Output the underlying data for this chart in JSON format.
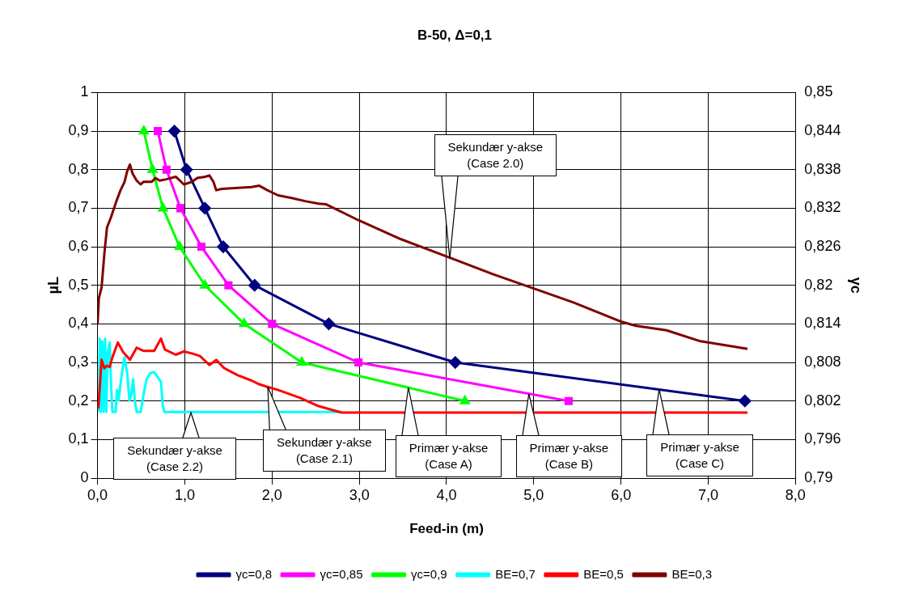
{
  "chart_data": {
    "type": "line",
    "title": "B-50, Δ=0,1",
    "xlabel": "Feed-in (m)",
    "ylabel": "µL",
    "y2label": "γc",
    "xlim": [
      0,
      8
    ],
    "xticks": [
      {
        "value": 0,
        "label": "0,0"
      },
      {
        "value": 1,
        "label": "1,0"
      },
      {
        "value": 2,
        "label": "2,0"
      },
      {
        "value": 3,
        "label": "3,0"
      },
      {
        "value": 4,
        "label": "4,0"
      },
      {
        "value": 5,
        "label": "5,0"
      },
      {
        "value": 6,
        "label": "6,0"
      },
      {
        "value": 7,
        "label": "7,0"
      },
      {
        "value": 8,
        "label": "8,0"
      }
    ],
    "ylim": [
      0,
      1
    ],
    "yticks": [
      0,
      {
        "value": 0.1,
        "label": "0,1"
      },
      {
        "value": 0.2,
        "label": "0,2"
      },
      {
        "value": 0.3,
        "label": "0,3"
      },
      {
        "value": 0.4,
        "label": "0,4"
      },
      {
        "value": 0.5,
        "label": "0,5"
      },
      {
        "value": 0.6,
        "label": "0,6"
      },
      {
        "value": 0.7,
        "label": "0,7"
      },
      {
        "value": 0.8,
        "label": "0,8"
      },
      {
        "value": 0.9,
        "label": "0,9"
      },
      1
    ],
    "y2lim": [
      0.79,
      0.85
    ],
    "y2ticks": [
      {
        "value": 0.79,
        "label": "0,79"
      },
      {
        "value": 0.796,
        "label": "0,796"
      },
      {
        "value": 0.802,
        "label": "0,802"
      },
      {
        "value": 0.808,
        "label": "0,808"
      },
      {
        "value": 0.814,
        "label": "0,814"
      },
      {
        "value": 0.82,
        "label": "0,82"
      },
      {
        "value": 0.826,
        "label": "0,826"
      },
      {
        "value": 0.832,
        "label": "0,832"
      },
      {
        "value": 0.838,
        "label": "0,838"
      },
      {
        "value": 0.844,
        "label": "0,844"
      },
      {
        "value": 0.85,
        "label": "0,85"
      }
    ],
    "grid": true,
    "legend": "bottom",
    "line_style": "solid",
    "series": [
      {
        "name": "γc=0,8",
        "color": "#000080",
        "marker": "diamond",
        "x": [
          0.88,
          1.02,
          1.23,
          1.44,
          1.8,
          2.65,
          4.1,
          7.42
        ],
        "values": [
          0.9,
          0.8,
          0.7,
          0.6,
          0.5,
          0.4,
          0.3,
          0.2
        ]
      },
      {
        "name": "γc=0,85",
        "color": "#ff00ff",
        "marker": "square",
        "x": [
          0.69,
          0.79,
          0.95,
          1.19,
          1.5,
          2.0,
          2.99,
          5.4
        ],
        "values": [
          0.9,
          0.8,
          0.7,
          0.6,
          0.5,
          0.4,
          0.3,
          0.2
        ]
      },
      {
        "name": "γc=0,9",
        "color": "#00ff00",
        "marker": "triangle",
        "x": [
          0.53,
          0.63,
          0.75,
          0.94,
          1.23,
          1.68,
          2.34,
          4.21
        ],
        "values": [
          0.9,
          0.8,
          0.7,
          0.6,
          0.5,
          0.4,
          0.3,
          0.2
        ]
      },
      {
        "name": "BE=0,7",
        "color": "#00ffff",
        "marker": "none",
        "axis": "y2",
        "x": [
          0.015,
          0.025,
          0.037,
          0.053,
          0.068,
          0.086,
          0.099,
          0.117,
          0.139,
          0.154,
          0.17,
          0.207,
          0.222,
          0.241,
          0.278,
          0.309,
          0.34,
          0.365,
          0.386,
          0.408,
          0.426,
          0.448,
          0.494,
          0.525,
          0.562,
          0.602,
          0.649,
          0.695,
          0.726,
          0.748,
          0.766,
          2.78
        ],
        "values": [
          0.8003,
          0.8117,
          0.8003,
          0.8113,
          0.8003,
          0.8117,
          0.8003,
          0.8096,
          0.8111,
          0.8046,
          0.8003,
          0.8003,
          0.8037,
          0.8021,
          0.8063,
          0.8088,
          0.8063,
          0.8021,
          0.8029,
          0.8054,
          0.8021,
          0.8003,
          0.8003,
          0.8029,
          0.8054,
          0.8063,
          0.8065,
          0.8056,
          0.805,
          0.8012,
          0.8003,
          0.8003
        ]
      },
      {
        "name": "BE=0,5",
        "color": "#ff0000",
        "marker": "none",
        "axis": "y2",
        "x": [
          0.009,
          0.046,
          0.077,
          0.108,
          0.139,
          0.17,
          0.232,
          0.293,
          0.371,
          0.448,
          0.525,
          0.649,
          0.726,
          0.772,
          0.896,
          0.989,
          1.081,
          1.174,
          1.282,
          1.36,
          1.452,
          1.607,
          1.761,
          1.854,
          1.946,
          2.07,
          2.317,
          2.533,
          2.688,
          2.8,
          7.45
        ],
        "values": [
          0.8008,
          0.8084,
          0.8071,
          0.8075,
          0.8073,
          0.8088,
          0.8111,
          0.8096,
          0.8084,
          0.8103,
          0.8098,
          0.8098,
          0.8117,
          0.81,
          0.8092,
          0.8097,
          0.8094,
          0.809,
          0.8076,
          0.8084,
          0.8071,
          0.806,
          0.8052,
          0.8046,
          0.8042,
          0.8037,
          0.8025,
          0.8012,
          0.8006,
          0.8002,
          0.8002
        ]
      },
      {
        "name": "BE=0,3",
        "color": "#800000",
        "marker": "none",
        "axis": "y2",
        "x": [
          0.0,
          0.015,
          0.046,
          0.077,
          0.108,
          0.154,
          0.216,
          0.263,
          0.309,
          0.34,
          0.371,
          0.401,
          0.448,
          0.494,
          0.525,
          0.618,
          0.664,
          0.711,
          0.788,
          0.896,
          0.989,
          1.081,
          1.143,
          1.236,
          1.282,
          1.328,
          1.36,
          1.421,
          1.761,
          1.854,
          1.946,
          2.07,
          2.224,
          2.379,
          2.533,
          2.62,
          2.995,
          3.474,
          4.04,
          4.537,
          5.0,
          5.46,
          5.99,
          6.17,
          6.52,
          6.91,
          7.45
        ],
        "values": [
          0.814,
          0.818,
          0.8197,
          0.8248,
          0.829,
          0.8306,
          0.8331,
          0.8348,
          0.8361,
          0.8378,
          0.8388,
          0.8374,
          0.8363,
          0.8357,
          0.8361,
          0.8361,
          0.8367,
          0.8363,
          0.8365,
          0.8369,
          0.8357,
          0.8361,
          0.8367,
          0.8369,
          0.8371,
          0.8361,
          0.8348,
          0.835,
          0.8353,
          0.8355,
          0.8348,
          0.834,
          0.8336,
          0.8331,
          0.8327,
          0.8326,
          0.8301,
          0.8272,
          0.8243,
          0.8217,
          0.8195,
          0.8173,
          0.8144,
          0.8137,
          0.813,
          0.8113,
          0.8101
        ]
      }
    ],
    "annotations": [
      {
        "text": "Sekundær y-akse\n(Case 2.0)",
        "x": 4.04,
        "y": 0.569
      },
      {
        "text": "Sekundær y-akse\n(Case 2.2)",
        "x": 1.07,
        "y": 0.17
      },
      {
        "text": "Sekundær y-akse\n(Case 2.1)",
        "x": 1.95,
        "y": 0.237
      },
      {
        "text": "Primær y-akse\n(Case A)",
        "x": 3.56,
        "y": 0.235
      },
      {
        "text": "Primær y-akse\n(Case B)",
        "x": 4.94,
        "y": 0.219
      },
      {
        "text": "Primær y-akse\n(Case C)",
        "x": 6.44,
        "y": 0.23
      }
    ]
  }
}
